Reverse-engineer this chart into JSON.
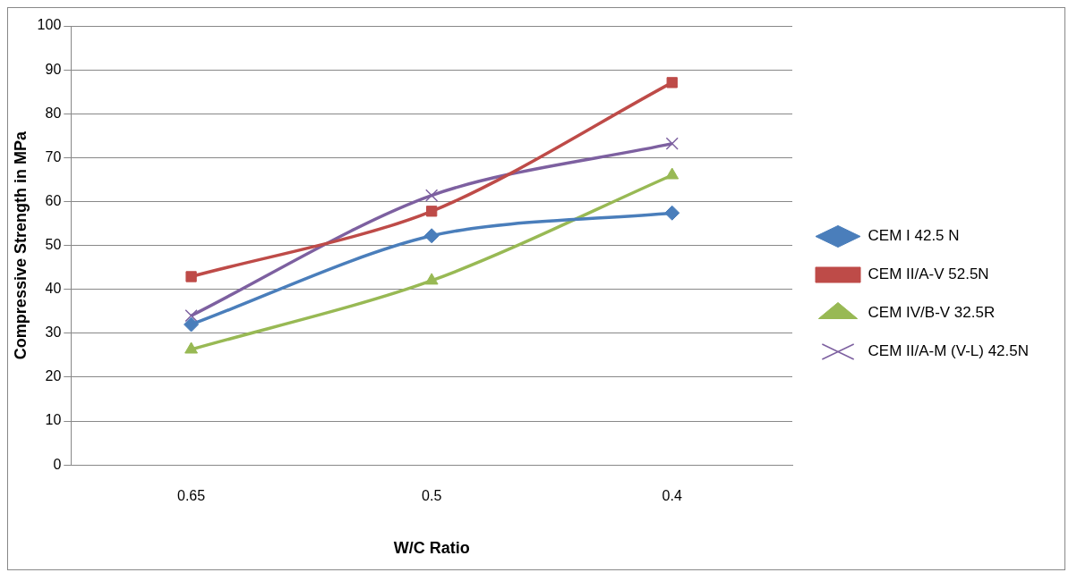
{
  "chart_data": {
    "type": "line",
    "xlabel": "W/C Ratio",
    "ylabel": "Compressive Strength in MPa",
    "categories": [
      "0.65",
      "0.5",
      "0.4"
    ],
    "series": [
      {
        "name": "CEM I 42.5 N",
        "color": "#4a7ebb",
        "marker": "diamond",
        "values": [
          32,
          52.2,
          57.4
        ]
      },
      {
        "name": "CEM II/A-V 52.5N",
        "color": "#be4b48",
        "marker": "square",
        "values": [
          42.9,
          57.8,
          87.1
        ]
      },
      {
        "name": "CEM IV/B-V 32.5R",
        "color": "#98b954",
        "marker": "triangle",
        "values": [
          26.3,
          42,
          66
        ]
      },
      {
        "name": "CEM II/A-M (V-L) 42.5N",
        "color": "#7d60a0",
        "marker": "cross",
        "values": [
          34,
          61.4,
          73.2
        ]
      }
    ],
    "ylim": [
      0,
      100
    ],
    "yticks": [
      0,
      10,
      20,
      30,
      40,
      50,
      60,
      70,
      80,
      90,
      100
    ],
    "grid": "y",
    "legend": "right",
    "line_style": "solid"
  }
}
